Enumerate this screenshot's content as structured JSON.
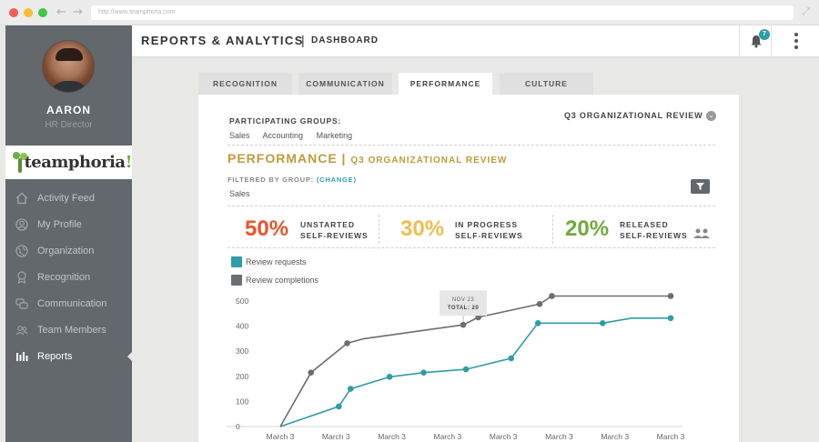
{
  "browser": {
    "url": "http://www.teamphoria.com"
  },
  "sidebar": {
    "user_name": "AARON",
    "user_role": "HR Director",
    "logo_text": "teamphoria",
    "logo_bang": "!",
    "items": [
      {
        "label": "Activity Feed",
        "icon": "home-icon",
        "active": false
      },
      {
        "label": "My Profile",
        "icon": "user-circle-icon",
        "active": false
      },
      {
        "label": "Organization",
        "icon": "globe-icon",
        "active": false
      },
      {
        "label": "Recognition",
        "icon": "award-icon",
        "active": false
      },
      {
        "label": "Communication",
        "icon": "chat-icon",
        "active": false
      },
      {
        "label": "Team Members",
        "icon": "team-icon",
        "active": false
      },
      {
        "label": "Reports",
        "icon": "bar-chart-icon",
        "active": true
      }
    ]
  },
  "header": {
    "title": "REPORTS & ANALYTICS",
    "separator": "|",
    "subtitle": "DASHBOARD",
    "notification_count": "7"
  },
  "tabs": [
    {
      "label": "RECOGNITION",
      "active": false
    },
    {
      "label": "COMMUNICATION",
      "active": false
    },
    {
      "label": "PERFORMANCE",
      "active": true
    },
    {
      "label": "CULTURE",
      "active": false
    }
  ],
  "panel": {
    "participating_label": "PARTICIPATING GROUPS:",
    "groups": [
      "Sales",
      "Accounting",
      "Marketing"
    ],
    "review_select": "Q3 ORGANIZATIONAL REVIEW",
    "section_title": "PERFORMANCE |",
    "section_subtitle": "Q3 ORGANIZATIONAL REVIEW",
    "filter_label": "FILTERED BY GROUP:",
    "filter_change": "(CHANGE)",
    "filter_value": "Sales"
  },
  "stats": [
    {
      "value": "50%",
      "line1": "UNSTARTED",
      "line2": "SELF-REVIEWS",
      "color": "#e8552b"
    },
    {
      "value": "30%",
      "line1": "IN PROGRESS",
      "line2": "SELF-REVIEWS",
      "color": "#efbe4e"
    },
    {
      "value": "20%",
      "line1": "RELEASED",
      "line2": "SELF-REVIEWS",
      "color": "#6faa3c"
    }
  ],
  "chart_data": {
    "type": "line",
    "legend": [
      {
        "name": "Review requests",
        "color": "#2f9ca8"
      },
      {
        "name": "Review completions",
        "color": "#6b6e70"
      }
    ],
    "x_tick_labels": [
      "March 3",
      "March 3",
      "March 3",
      "March 3",
      "March 3",
      "March 3",
      "March 3",
      "March 3"
    ],
    "y_ticks": [
      0,
      100,
      200,
      300,
      400,
      500
    ],
    "ylim": [
      0,
      500
    ],
    "xlim": [
      0,
      7
    ],
    "series": [
      {
        "name": "Review requests",
        "color": "#2f9ca8",
        "points": [
          [
            0,
            0
          ],
          [
            1.05,
            80
          ],
          [
            1.26,
            150
          ],
          [
            1.96,
            198
          ],
          [
            2.57,
            215
          ],
          [
            3.33,
            228
          ],
          [
            4.14,
            272
          ],
          [
            4.62,
            412
          ],
          [
            5.78,
            412
          ],
          [
            6.3,
            432
          ],
          [
            7.0,
            432
          ]
        ]
      },
      {
        "name": "Review completions",
        "color": "#6b6e70",
        "points": [
          [
            0,
            0
          ],
          [
            0.55,
            215
          ],
          [
            1.2,
            332
          ],
          [
            1.5,
            350
          ],
          [
            3.28,
            405
          ],
          [
            3.55,
            435
          ],
          [
            4.65,
            488
          ],
          [
            4.87,
            520
          ],
          [
            7.0,
            520
          ]
        ]
      }
    ],
    "marker_points": {
      "Review requests": [
        1,
        2,
        3,
        4,
        5,
        6,
        7,
        8,
        10
      ],
      "Review completions": [
        1,
        2,
        4,
        5,
        6,
        7,
        8
      ]
    },
    "tooltip": {
      "date": "NOV 23",
      "total": "TOTAL: 20",
      "series": "Review completions",
      "point_index": 4
    }
  }
}
